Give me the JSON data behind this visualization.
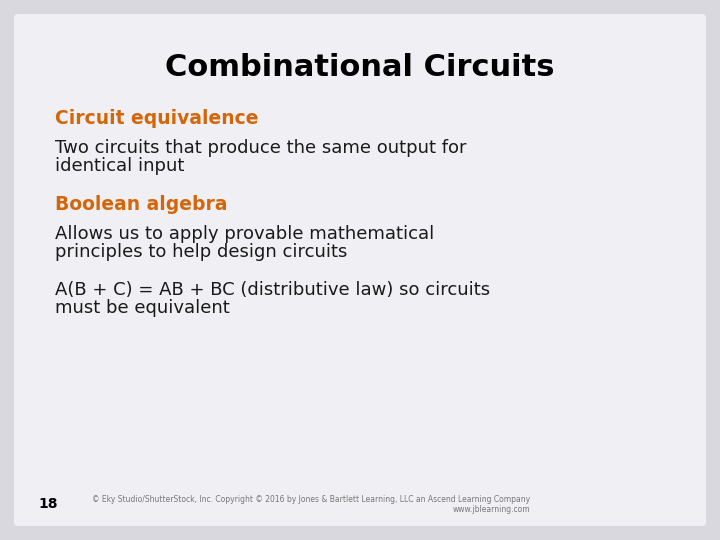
{
  "title": "Combinational Circuits",
  "title_fontsize": 22,
  "title_color": "#000000",
  "background_color": "#d8d8de",
  "slide_bg": "#f0f0f4",
  "heading1": "Circuit equivalence",
  "heading1_color": "#d4660a",
  "heading1_fontsize": 13.5,
  "body1_line1": "Two circuits that produce the same output for",
  "body1_line2": "identical input",
  "body_fontsize": 13,
  "body_color": "#1a1a1a",
  "heading2": "Boolean algebra",
  "heading2_color": "#d4660a",
  "heading2_fontsize": 13.5,
  "body2_line1": "Allows us to apply provable mathematical",
  "body2_line2": "principles to help design circuits",
  "body3_line1": "A(B + C) = AB + BC (distributive law) so circuits",
  "body3_line2": "must be equivalent",
  "page_number": "18",
  "page_number_fontsize": 10,
  "footer_line1": "© Eky Studio/ShutterStock, Inc. Copyright © 2016 by Jones & Bartlett Learning, LLC an Ascend Learning Company",
  "footer_line2": "www.jblearning.com",
  "footer_fontsize": 5.5,
  "footer_color": "#777777"
}
